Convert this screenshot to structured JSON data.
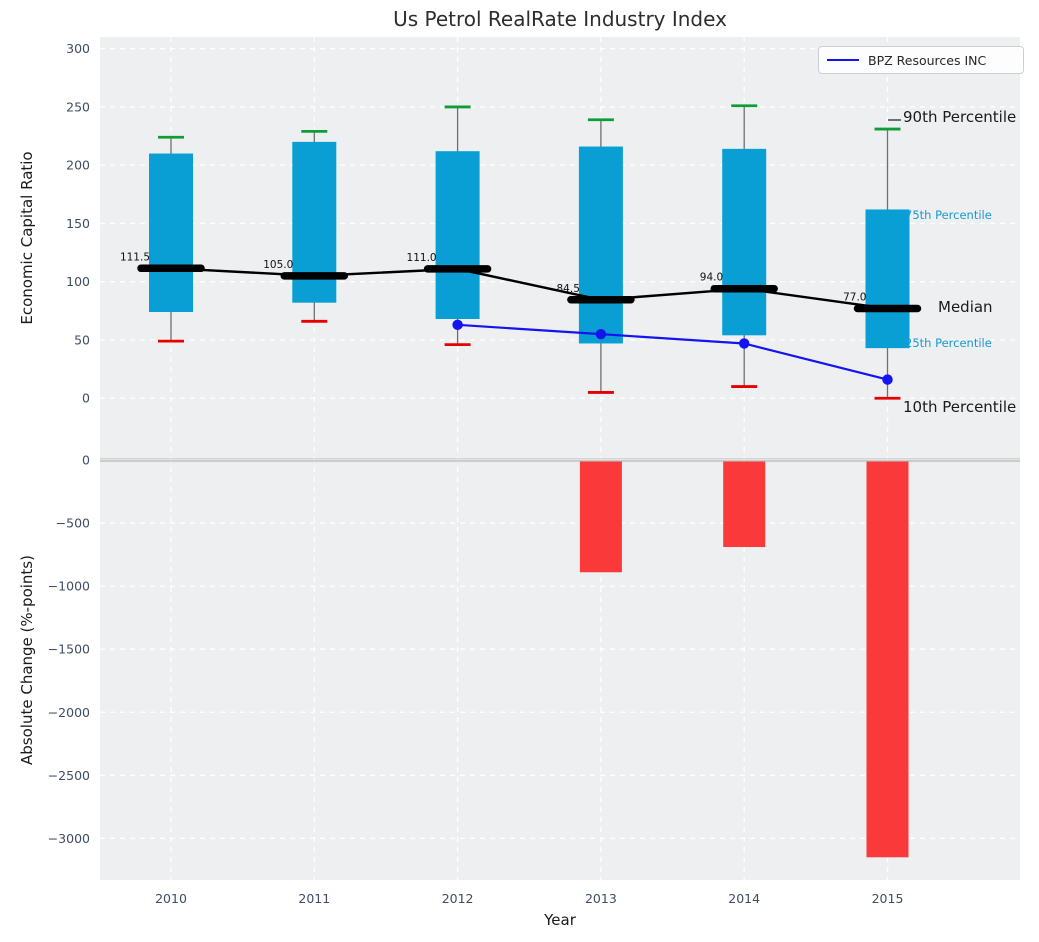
{
  "title": "Us Petrol RealRate Industry Index",
  "xlabel": "Year",
  "colors": {
    "plot_bg": "#edeff1",
    "grid": "#ffffff",
    "box_cyan": "#0a9fd4",
    "cap_green": "#0f9e35",
    "cap_red": "#e60000",
    "bar_red": "#fa3a3a",
    "line_blue": "#1414f0",
    "median_black": "#000000",
    "whisker_gray": "#6f6f6f",
    "tick_label": "#3e4d63",
    "boundary_gray": "#c0c0c0",
    "annotation_cyan": "#189ad2",
    "annotation_black": "#1a1a1a"
  },
  "chart_data": [
    {
      "type": "box",
      "title": "Us Petrol RealRate Industry Index",
      "ylabel": "Economic Capital Ratio",
      "categories": [
        "2010",
        "2011",
        "2012",
        "2013",
        "2014",
        "2015"
      ],
      "ylim": [
        -53,
        310
      ],
      "grid": true,
      "ytick_values": [
        0,
        50,
        100,
        150,
        200,
        250,
        300
      ],
      "ytick_labels": [
        "0",
        "50",
        "100",
        "150",
        "200",
        "250",
        "300"
      ],
      "series": [
        {
          "name": "90th Percentile",
          "values": [
            224,
            229,
            250,
            239,
            251,
            231
          ]
        },
        {
          "name": "75th Percentile",
          "values": [
            210,
            220,
            212,
            216,
            214,
            162
          ]
        },
        {
          "name": "Median",
          "values": [
            111.5,
            105.0,
            111.0,
            84.5,
            94.0,
            77.0
          ],
          "labels": [
            "111.5",
            "105.0",
            "111.0",
            "84.5",
            "94.0",
            "77.0"
          ]
        },
        {
          "name": "25th Percentile",
          "values": [
            74,
            82,
            68,
            47,
            54,
            43
          ]
        },
        {
          "name": "10th Percentile",
          "values": [
            49,
            66,
            46,
            5,
            10,
            0
          ]
        },
        {
          "name": "BPZ Resources INC",
          "values": [
            null,
            null,
            63,
            55,
            47,
            16
          ]
        }
      ],
      "legend": {
        "label": "BPZ Resources INC",
        "position": "upper right"
      },
      "annotations": [
        {
          "text": "90th Percentile",
          "style": "big"
        },
        {
          "text": "75th Percentile",
          "style": "cyan"
        },
        {
          "text": "Median",
          "style": "big"
        },
        {
          "text": "25th Percentile",
          "style": "cyan"
        },
        {
          "text": "10th Percentile",
          "style": "big"
        }
      ]
    },
    {
      "type": "bar",
      "ylabel": "Absolute Change (%-points)",
      "xlabel": "Year",
      "categories": [
        "2010",
        "2011",
        "2012",
        "2013",
        "2014",
        "2015"
      ],
      "values": [
        null,
        null,
        null,
        -890,
        -690,
        -3150
      ],
      "ylim": [
        0,
        -3330
      ],
      "grid": true,
      "ytick_values": [
        0,
        -500,
        -1000,
        -1500,
        -2000,
        -2500,
        -3000
      ],
      "ytick_labels": [
        "0",
        "−500",
        "−1000",
        "−1500",
        "−2000",
        "−2500",
        "−3000"
      ]
    }
  ]
}
